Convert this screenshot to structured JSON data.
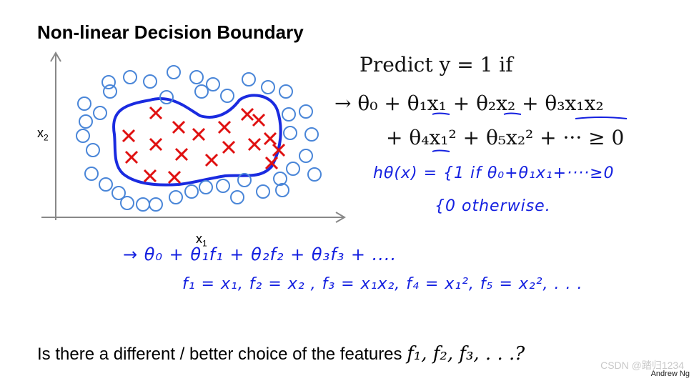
{
  "title": "Non-linear Decision Boundary",
  "plot": {
    "x_label": "x",
    "x_sub": "1",
    "y_label": "x",
    "y_sub": "2"
  },
  "predict": {
    "line": "Predict y = 1 if",
    "eq1": "→ θ₀ + θ₁x₁ + θ₂x₂ + θ₃x₁x₂",
    "eq2": "+ θ₄x₁² + θ₅x₂² + ··· ≥ 0"
  },
  "handwritten": {
    "h_def": "hθ(x) = {1   if   θ₀+θ₁x₁+····≥0",
    "h_else": "{0   otherwise.",
    "f_eq": "→ θ₀ + θ₁f₁ + θ₂f₂ + θ₃f₃ + ....",
    "f_defs": "f₁ = x₁,   f₂ = x₂ ,  f₃ = x₁x₂,  f₄ = x₁²,  f₅ = x₂², . . ."
  },
  "question": {
    "text": "Is there a different / better choice of the features",
    "features": "f₁, f₂, f₃, . . .?"
  },
  "credit": "Andrew Ng",
  "watermark": "CSDN @踏归1234",
  "colors": {
    "circle": "#4a86d8",
    "cross": "#e01010",
    "boundary": "#1a2be0",
    "handwriting": "#1420e0"
  }
}
